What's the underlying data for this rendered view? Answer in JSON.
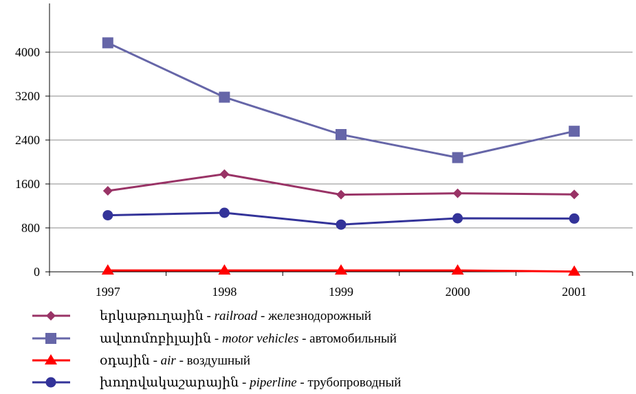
{
  "chart_data": {
    "type": "line",
    "categories": [
      "1997",
      "1998",
      "1999",
      "2000",
      "2001"
    ],
    "ylim": [
      0,
      4800
    ],
    "yticks": [
      0,
      800,
      1600,
      2400,
      3200,
      4000
    ],
    "grid": true,
    "legend_position": "bottom",
    "series": [
      {
        "name": "երկաթուղային - railroad - железнодорожный",
        "name_parts": [
          "երկաթուղային - ",
          "railroad",
          " - железнодорожный"
        ],
        "color": "#993366",
        "marker": "diamond",
        "values": [
          1475,
          1780,
          1405,
          1430,
          1410
        ]
      },
      {
        "name": "ավտոմոբիլային - motor vehicles - автомобильный",
        "name_parts": [
          "ավտոմոբիլային - ",
          "motor vehicles",
          " - автомобильный"
        ],
        "color": "#6666A8",
        "marker": "square",
        "values": [
          4170,
          3180,
          2500,
          2080,
          2560
        ]
      },
      {
        "name": "օդային - air - воздушный",
        "name_parts": [
          "օդային - ",
          "air",
          " - воздушный"
        ],
        "color": "#FF0000",
        "marker": "triangle",
        "values": [
          25,
          25,
          25,
          25,
          5
        ]
      },
      {
        "name": "խողովակաշարային - piperline - трубопроводный",
        "name_parts": [
          "խողովակաշարային - ",
          "piperline",
          " - трубопроводный"
        ],
        "color": "#333399",
        "marker": "circle",
        "values": [
          1030,
          1075,
          860,
          975,
          970
        ]
      }
    ]
  }
}
